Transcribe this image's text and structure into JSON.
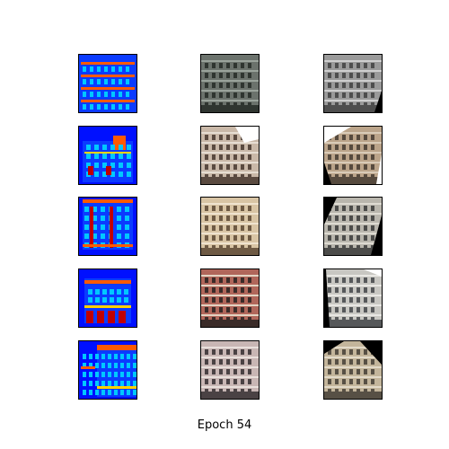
{
  "caption": "Epoch 54",
  "grid": {
    "rows": 5,
    "columns": [
      "label-map",
      "generated",
      "target"
    ],
    "label_map_colors": {
      "background": "#0010ff",
      "wall": "#0b3bff",
      "window": "#00c8ff",
      "cornice": "#ff5a00",
      "shop": "#c00000",
      "balcony": "#ffd000"
    }
  }
}
